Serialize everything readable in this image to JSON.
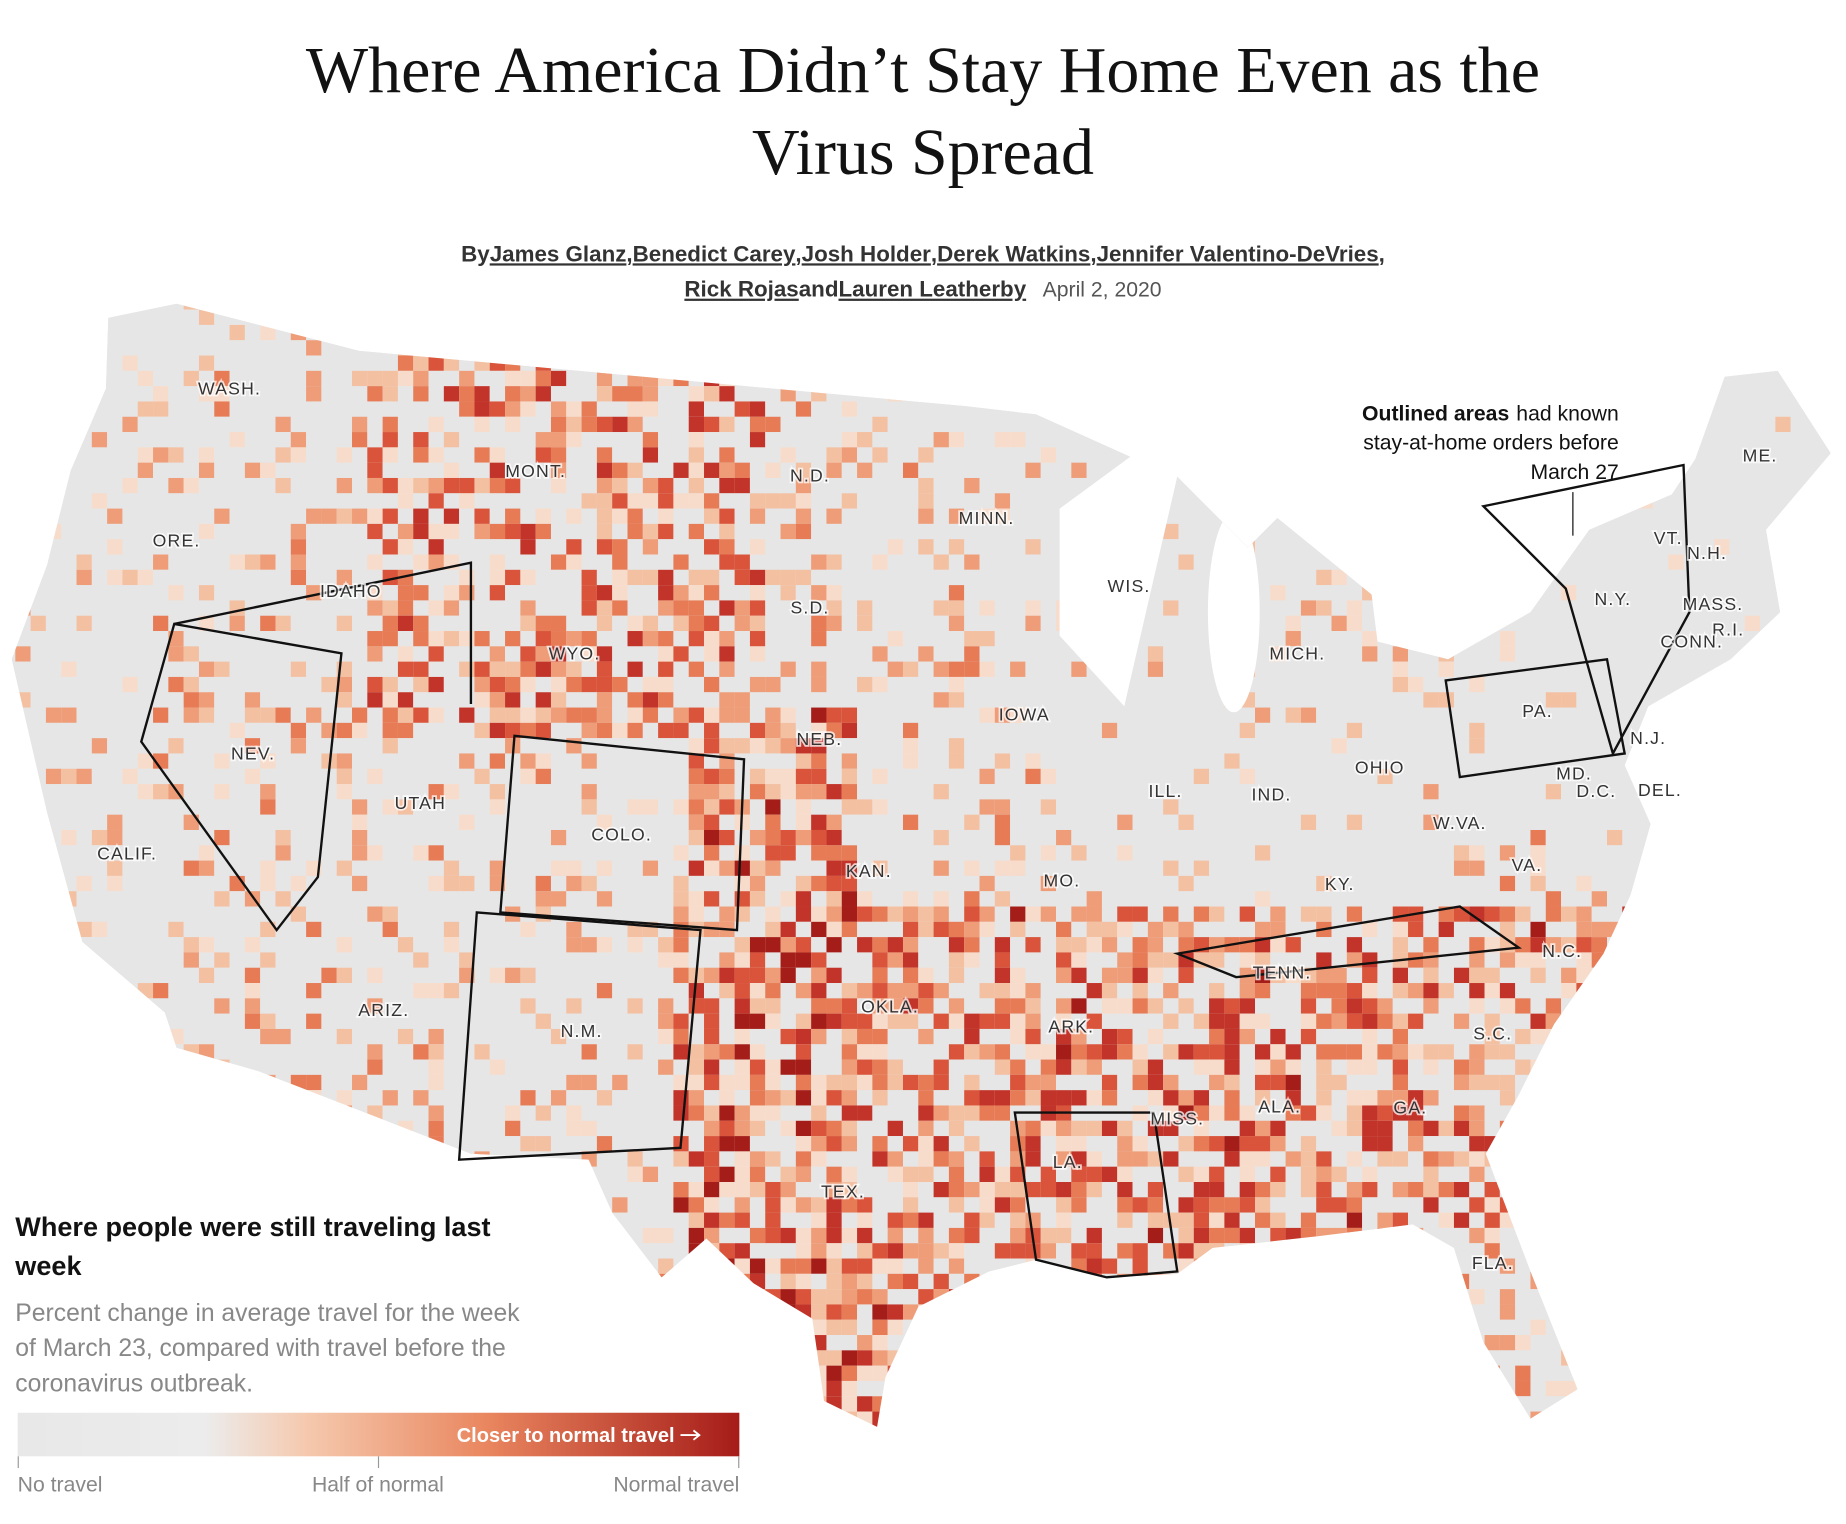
{
  "header": {
    "title_lines": [
      "Where America Didn’t Stay Home Even as the",
      "Virus Spread"
    ],
    "byline_lines": [
      [
        {
          "text": "By",
          "link": false
        },
        {
          "text": "James Glanz",
          "link": true
        },
        {
          "text": ",",
          "link": false
        },
        {
          "text": "Benedict Carey",
          "link": true
        },
        {
          "text": ",",
          "link": false
        },
        {
          "text": "Josh Holder",
          "link": true
        },
        {
          "text": ",",
          "link": false
        },
        {
          "text": "Derek Watkins",
          "link": true
        },
        {
          "text": ",",
          "link": false
        },
        {
          "text": "Jennifer Valentino-DeVries",
          "link": true
        },
        {
          "text": ",",
          "link": false
        }
      ],
      [
        {
          "text": "Rick Rojas",
          "link": true
        },
        {
          "text": "and",
          "link": false
        },
        {
          "text": "Lauren Leatherby",
          "link": true
        }
      ]
    ],
    "date": "April 2, 2020"
  },
  "annotation": {
    "bold": "Outlined areas",
    "lines": [
      "had known",
      "stay-at-home orders before",
      "March 27"
    ]
  },
  "states": [
    "WASH.",
    "ORE.",
    "CALIF.",
    "IDAHO",
    "NEV.",
    "MONT.",
    "WYO.",
    "UTAH",
    "ARIZ.",
    "COLO.",
    "N.M.",
    "N.D.",
    "S.D.",
    "NEB.",
    "KAN.",
    "OKLA.",
    "TEX.",
    "MINN.",
    "IOWA",
    "MO.",
    "ARK.",
    "LA.",
    "WIS.",
    "ILL.",
    "MICH.",
    "IND.",
    "OHIO",
    "KY.",
    "TENN.",
    "MISS.",
    "ALA.",
    "GA.",
    "FLA.",
    "S.C.",
    "N.C.",
    "VA.",
    "W.VA.",
    "PA.",
    "N.Y.",
    "ME.",
    "VT.",
    "N.H.",
    "MASS.",
    "R.I.",
    "CONN.",
    "N.J.",
    "MD.",
    "D.C.",
    "DEL."
  ],
  "legend": {
    "title_lines": [
      "Where people were still traveling last",
      "week"
    ],
    "subtitle_lines": [
      "Percent change in average travel for the week",
      "of March 23, compared with travel before the",
      "coronavirus outbreak."
    ],
    "bar_label": "Closer to normal travel",
    "scale_labels": [
      "No travel",
      "Half of normal",
      "Normal travel"
    ]
  }
}
